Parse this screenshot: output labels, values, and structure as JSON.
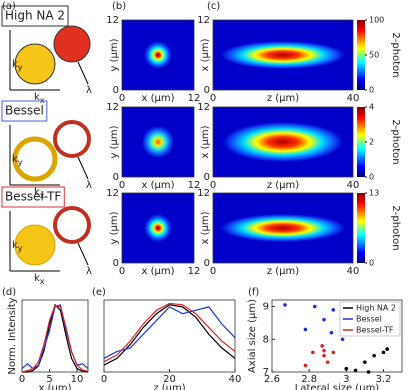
{
  "panel_labels": [
    "(a)",
    "(b)",
    "(c)",
    "(d)",
    "(e)",
    "(f)"
  ],
  "panel_a": {
    "rows": [
      {
        "title": "High NA 2",
        "k": "k",
        "ky": "y",
        "kx": "x",
        "lambda": "λ"
      },
      {
        "title": "Bessel",
        "k": "k",
        "ky": "y",
        "kx": "x",
        "lambda": "λ"
      },
      {
        "title": "Bessel-TF",
        "k": "k",
        "ky": "y",
        "kx": "x",
        "lambda": "λ"
      }
    ]
  },
  "panel_b": {
    "xlabel": "x (μm)",
    "ylabel": "y (μm)",
    "xlim": [
      0,
      12
    ],
    "xticks": [
      0,
      12
    ],
    "ylim": [
      0,
      12
    ],
    "yticks": [
      0,
      12
    ]
  },
  "panel_c": {
    "xlabel": "z (μm)",
    "ylabel": "x (μm)",
    "xlim": [
      0,
      40
    ],
    "xticks": [
      0,
      40
    ],
    "ylim": [
      0,
      12
    ],
    "yticks": [
      0,
      12
    ]
  },
  "colorbars": [
    {
      "label": "2-photon",
      "lim": [
        0,
        100
      ],
      "ticks": [
        0,
        50,
        100
      ]
    },
    {
      "label": "2-photon",
      "lim": [
        0,
        4
      ],
      "ticks": [
        0,
        2,
        4
      ]
    },
    {
      "label": "2-photon",
      "lim": [
        0,
        13
      ],
      "ticks": [
        0,
        13
      ]
    }
  ],
  "chart_data": [
    {
      "type": "line",
      "ylabel": "Norm. Intensity",
      "xlabel": "x (μm)",
      "x": [
        0,
        1,
        2,
        3,
        4,
        5,
        6,
        7,
        8,
        9,
        10,
        11,
        12
      ],
      "xlim": [
        0,
        12
      ],
      "xticks": [
        0,
        5,
        10
      ],
      "ylim": [
        0,
        1.05
      ],
      "series": [
        {
          "color": "#000000",
          "values": [
            0,
            0,
            0.02,
            0.09,
            0.31,
            0.69,
            0.98,
            0.9,
            0.53,
            0.2,
            0.05,
            0.01,
            0
          ]
        },
        {
          "color": "#2233dd",
          "values": [
            0.05,
            0.12,
            0.05,
            0.1,
            0.35,
            0.6,
            0.95,
            0.98,
            0.6,
            0.3,
            0.1,
            0.12,
            0.05
          ]
        },
        {
          "color": "#dd2222",
          "values": [
            0,
            0.02,
            0.05,
            0.15,
            0.4,
            0.75,
            0.97,
            0.95,
            0.65,
            0.3,
            0.1,
            0.03,
            0.01
          ]
        }
      ]
    },
    {
      "type": "line",
      "xlabel": "z (μm)",
      "x": [
        0,
        4,
        8,
        12,
        16,
        20,
        24,
        28,
        32,
        36,
        40
      ],
      "xlim": [
        0,
        40
      ],
      "xticks": [
        0,
        20,
        40
      ],
      "ylim": [
        0,
        1.05
      ],
      "series": [
        {
          "color": "#000000",
          "values": [
            0.1,
            0.2,
            0.4,
            0.65,
            0.85,
            0.98,
            0.95,
            0.8,
            0.55,
            0.35,
            0.2
          ]
        },
        {
          "color": "#2233dd",
          "values": [
            0.2,
            0.3,
            0.35,
            0.55,
            0.75,
            0.95,
            0.85,
            0.9,
            0.95,
            0.7,
            0.5
          ]
        },
        {
          "color": "#dd2222",
          "values": [
            0.15,
            0.25,
            0.45,
            0.7,
            0.9,
            1.0,
            0.98,
            0.85,
            0.65,
            0.45,
            0.3
          ]
        }
      ]
    },
    {
      "type": "scatter",
      "ylabel": "Axial size (μm)",
      "xlabel": "Lateral size (μm)",
      "xlim": [
        2.6,
        3.3
      ],
      "xticks": [
        2.6,
        2.8,
        3,
        3.2
      ],
      "ylim": [
        7,
        9.2
      ],
      "yticks": [
        7,
        8,
        9
      ],
      "legend": "upper right",
      "series": [
        {
          "name": "High NA 2",
          "color": "#000000",
          "x": [
            3.05,
            3.1,
            3.15,
            3.2,
            3.22,
            3.0,
            3.12
          ],
          "values": [
            7.05,
            7.3,
            7.5,
            7.6,
            7.7,
            7.1,
            7.0
          ]
        },
        {
          "name": "Bessel",
          "color": "#2233dd",
          "x": [
            2.67,
            2.83,
            2.93,
            2.88,
            2.78,
            2.92,
            2.98
          ],
          "values": [
            9.05,
            9.0,
            8.9,
            8.6,
            8.3,
            8.2,
            8.0
          ]
        },
        {
          "name": "Bessel-TF",
          "color": "#dd2222",
          "x": [
            2.88,
            2.82,
            2.88,
            2.93,
            2.87,
            2.9,
            2.78
          ],
          "values": [
            7.65,
            7.6,
            7.5,
            7.6,
            7.8,
            7.3,
            7.2
          ]
        }
      ]
    }
  ]
}
